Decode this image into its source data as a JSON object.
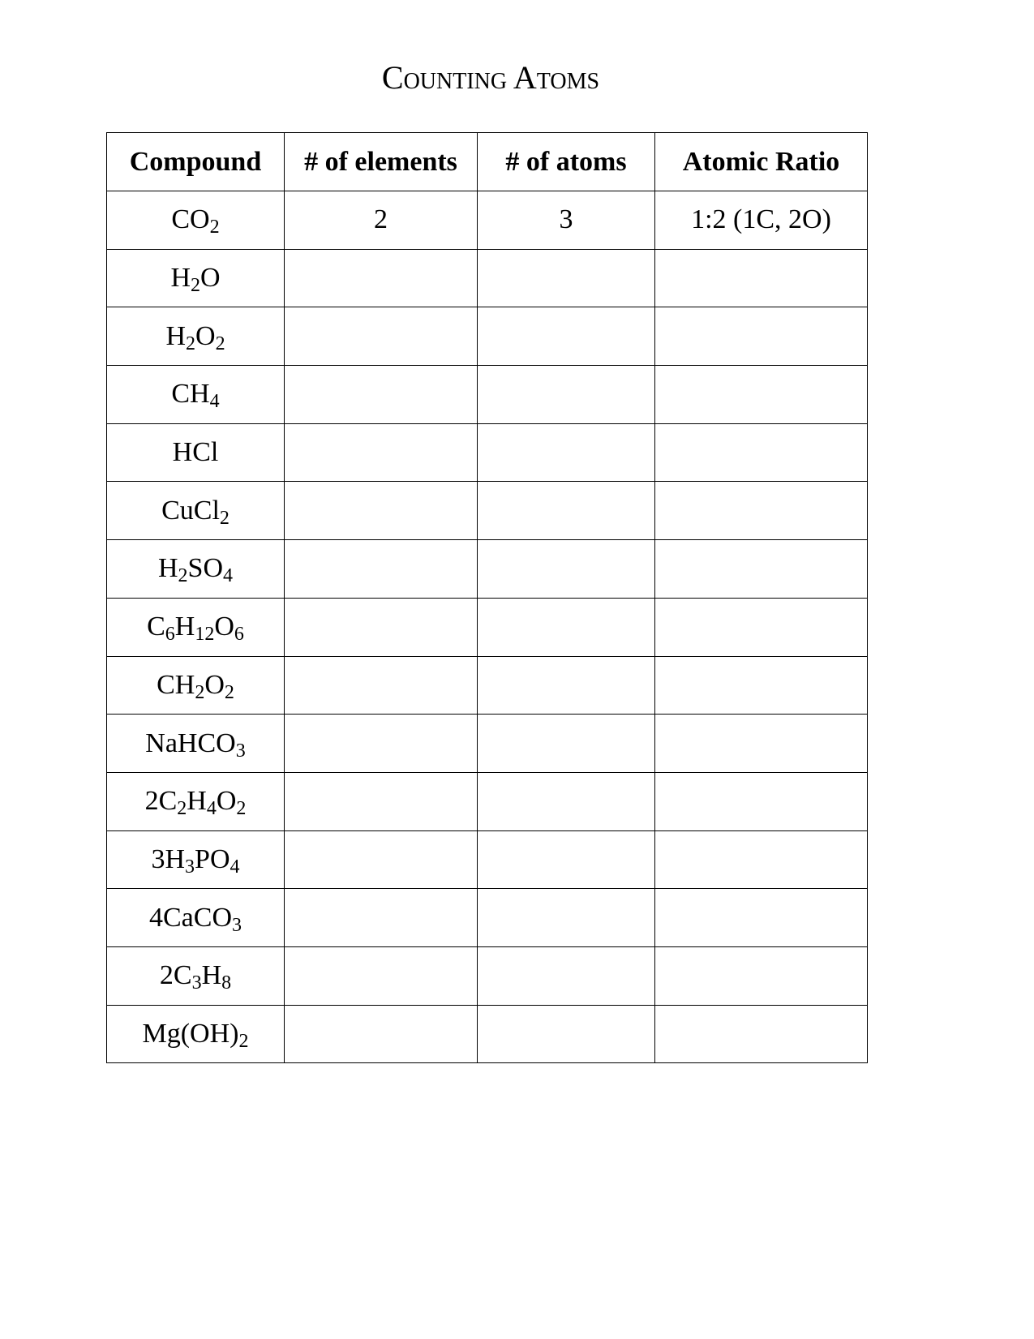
{
  "title": "Counting Atoms",
  "headers": [
    "Compound",
    "# of elements",
    "# of atoms",
    "Atomic Ratio"
  ],
  "rows": [
    {
      "formula": [
        [
          "CO",
          0
        ],
        [
          "2",
          1
        ]
      ],
      "elements": "2",
      "atoms": "3",
      "ratio": "1:2  (1C, 2O)"
    },
    {
      "formula": [
        [
          "H",
          0
        ],
        [
          "2",
          1
        ],
        [
          "O",
          0
        ]
      ],
      "elements": "",
      "atoms": "",
      "ratio": ""
    },
    {
      "formula": [
        [
          "H",
          0
        ],
        [
          "2",
          1
        ],
        [
          "O",
          0
        ],
        [
          "2",
          1
        ]
      ],
      "elements": "",
      "atoms": "",
      "ratio": ""
    },
    {
      "formula": [
        [
          "CH",
          0
        ],
        [
          "4",
          1
        ]
      ],
      "elements": "",
      "atoms": "",
      "ratio": ""
    },
    {
      "formula": [
        [
          "HCl",
          0
        ]
      ],
      "elements": "",
      "atoms": "",
      "ratio": ""
    },
    {
      "formula": [
        [
          "CuCl",
          0
        ],
        [
          "2",
          1
        ]
      ],
      "elements": "",
      "atoms": "",
      "ratio": ""
    },
    {
      "formula": [
        [
          "H",
          0
        ],
        [
          "2",
          1
        ],
        [
          "SO",
          0
        ],
        [
          "4",
          1
        ]
      ],
      "elements": "",
      "atoms": "",
      "ratio": ""
    },
    {
      "formula": [
        [
          "C",
          0
        ],
        [
          "6",
          1
        ],
        [
          "H",
          0
        ],
        [
          "12",
          1
        ],
        [
          "O",
          0
        ],
        [
          "6",
          1
        ]
      ],
      "elements": "",
      "atoms": "",
      "ratio": ""
    },
    {
      "formula": [
        [
          "CH",
          0
        ],
        [
          "2",
          1
        ],
        [
          "O",
          0
        ],
        [
          "2",
          1
        ]
      ],
      "elements": "",
      "atoms": "",
      "ratio": ""
    },
    {
      "formula": [
        [
          "NaHCO",
          0
        ],
        [
          "3",
          1
        ]
      ],
      "elements": "",
      "atoms": "",
      "ratio": ""
    },
    {
      "formula": [
        [
          "2C",
          0
        ],
        [
          "2",
          1
        ],
        [
          "H",
          0
        ],
        [
          "4",
          1
        ],
        [
          "O",
          0
        ],
        [
          "2",
          1
        ]
      ],
      "elements": "",
      "atoms": "",
      "ratio": ""
    },
    {
      "formula": [
        [
          "3H",
          0
        ],
        [
          "3",
          1
        ],
        [
          "PO",
          0
        ],
        [
          "4",
          1
        ]
      ],
      "elements": "",
      "atoms": "",
      "ratio": ""
    },
    {
      "formula": [
        [
          "4CaCO",
          0
        ],
        [
          "3",
          1
        ]
      ],
      "elements": "",
      "atoms": "",
      "ratio": ""
    },
    {
      "formula": [
        [
          "2C",
          0
        ],
        [
          "3",
          1
        ],
        [
          "H",
          0
        ],
        [
          "8",
          1
        ]
      ],
      "elements": "",
      "atoms": "",
      "ratio": ""
    },
    {
      "formula": [
        [
          "Mg(OH)",
          0
        ],
        [
          "2",
          1
        ]
      ],
      "elements": "",
      "atoms": "",
      "ratio": ""
    }
  ]
}
